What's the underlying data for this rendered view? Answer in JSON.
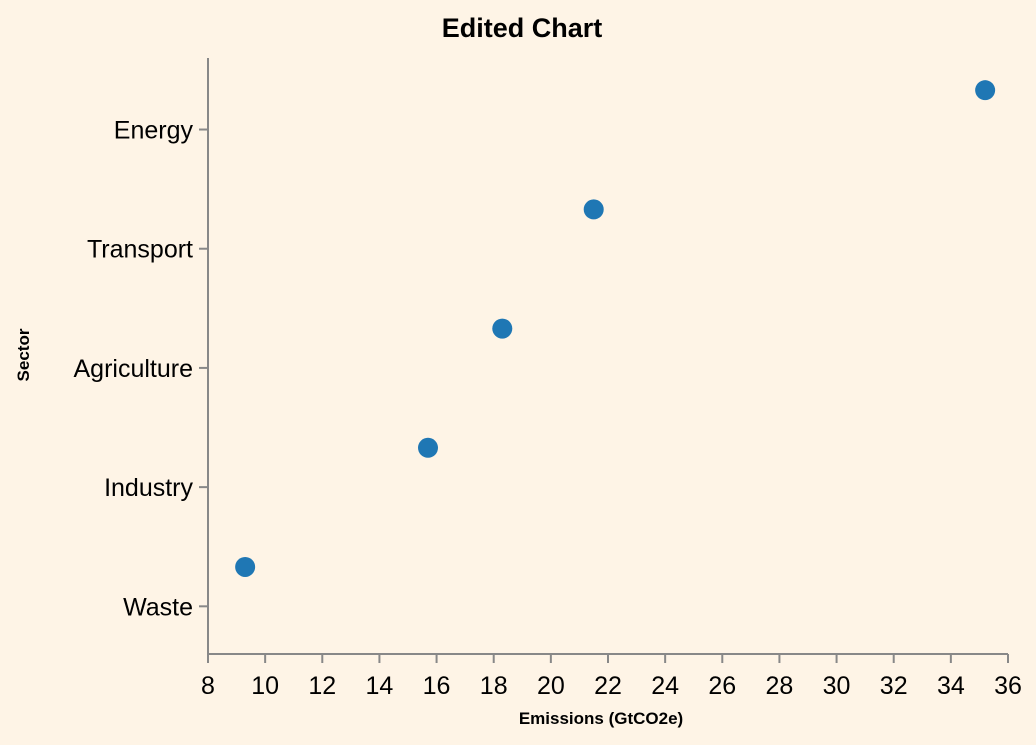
{
  "chart_data": {
    "type": "scatter",
    "title": "Edited Chart",
    "xlabel": "Emissions (GtCO2e)",
    "ylabel": "Sector",
    "xlim": [
      8,
      36
    ],
    "xticks": [
      8,
      10,
      12,
      14,
      16,
      18,
      20,
      22,
      24,
      26,
      28,
      30,
      32,
      34,
      36
    ],
    "categories": [
      "Energy",
      "Transport",
      "Agriculture",
      "Industry",
      "Waste"
    ],
    "points": [
      {
        "category": "Energy",
        "x": 35.2
      },
      {
        "category": "Transport",
        "x": 21.5
      },
      {
        "category": "Agriculture",
        "x": 18.3
      },
      {
        "category": "Industry",
        "x": 15.7
      },
      {
        "category": "Waste",
        "x": 9.3
      }
    ],
    "grid": false,
    "colors": {
      "point": "#1f77b4",
      "background": "#fef4e6",
      "axis": "#888888"
    }
  }
}
